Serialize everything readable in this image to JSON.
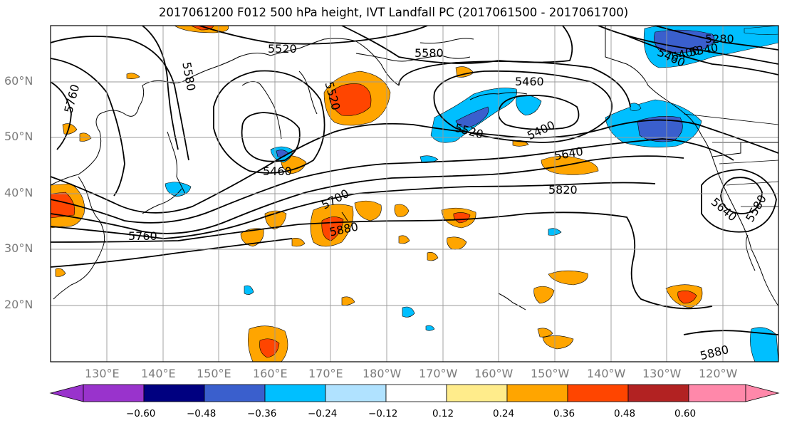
{
  "title": "2017061200 F012 500 hPa height, IVT Landfall PC (2017061500 - 2017061700)",
  "latitude_labels": [
    "60°N",
    "50°N",
    "40°N",
    "30°N",
    "20°N"
  ],
  "longitude_labels": [
    "130°E",
    "140°E",
    "150°E",
    "160°E",
    "170°E",
    "180°W",
    "170°W",
    "160°W",
    "150°W",
    "140°W",
    "130°W",
    "120°W"
  ],
  "height_contour_labels": [
    "5520",
    "5580",
    "5580",
    "5760",
    "5520",
    "5460",
    "5460",
    "5400",
    "5520",
    "5280",
    "5340",
    "5400",
    "5460",
    "5640",
    "5700",
    "5820",
    "5760",
    "5880",
    "5640",
    "5580",
    "5880"
  ],
  "colorbar": {
    "ticks": [
      "−0.60",
      "−0.48",
      "−0.36",
      "−0.24",
      "−0.12",
      "0.12",
      "0.24",
      "0.36",
      "0.48",
      "0.60"
    ],
    "colors": [
      "#9933cc",
      "#000080",
      "#3a5fcd",
      "#00bfff",
      "#b0e2ff",
      "#ffffff",
      "#ffec8b",
      "#ffa500",
      "#ff4500",
      "#b22222",
      "#ff88aa"
    ]
  },
  "colors": {
    "contour": "#000000",
    "coast": "#000000",
    "grid": "#999999"
  }
}
